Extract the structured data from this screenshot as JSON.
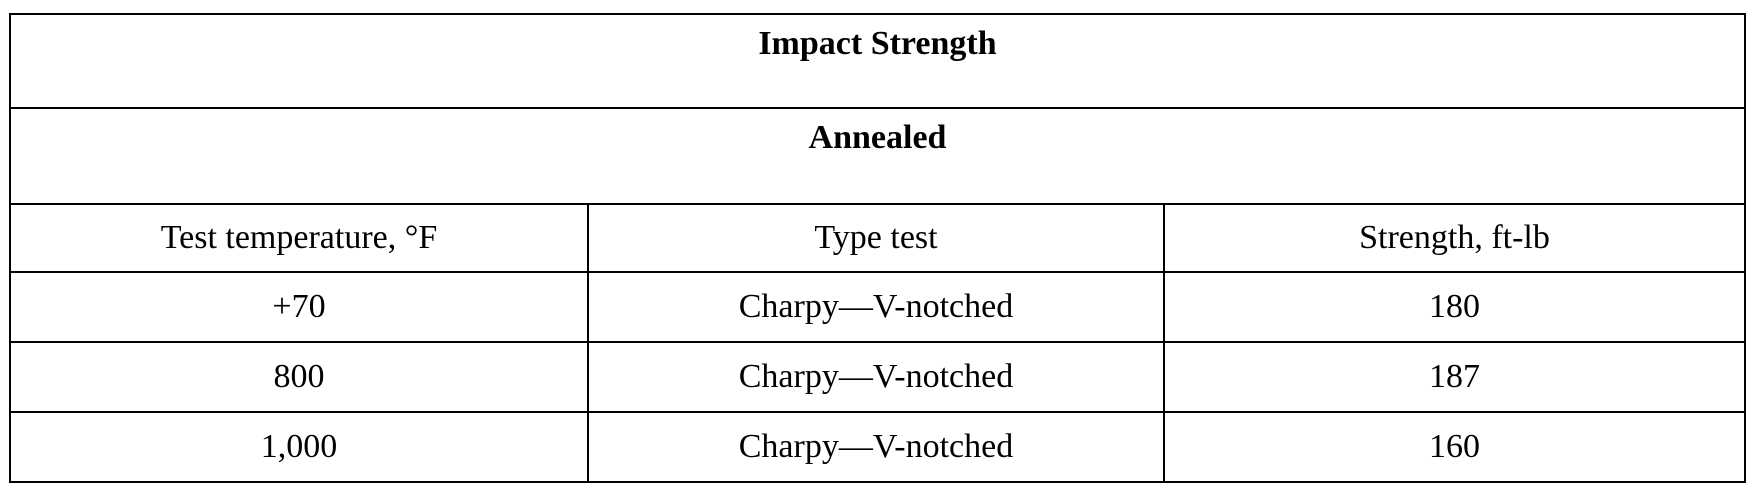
{
  "table": {
    "title": "Impact Strength",
    "subtitle": "Annealed",
    "columns": [
      "Test temperature, °F",
      "Type test",
      "Strength, ft-lb"
    ],
    "rows": [
      [
        "+70",
        "Charpy—V-notched",
        "180"
      ],
      [
        "800",
        "Charpy—V-notched",
        "187"
      ],
      [
        "1,000",
        "Charpy—V-notched",
        "160"
      ]
    ]
  }
}
